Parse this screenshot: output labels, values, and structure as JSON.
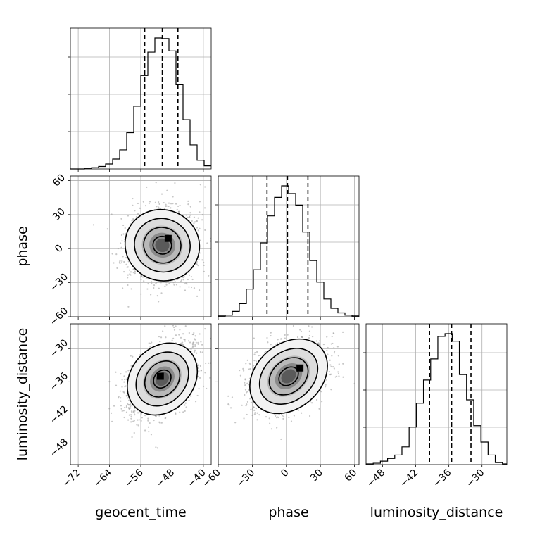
{
  "chart_data": {
    "type": "corner",
    "parameters": [
      "geocent_time",
      "phase",
      "luminosity_distance"
    ],
    "axis_labels": {
      "x": [
        "geocent_time",
        "phase",
        "luminosity_distance"
      ],
      "y": [
        "phase",
        "luminosity_distance"
      ]
    },
    "ranges": {
      "geocent_time": [
        -74,
        -38
      ],
      "phase": [
        -60,
        64
      ],
      "luminosity_distance": [
        -51,
        -25.5
      ]
    },
    "ticks": {
      "geocent_time": [
        -72,
        -64,
        -56,
        -48,
        -40
      ],
      "phase": [
        -60,
        -30,
        0,
        30,
        60
      ],
      "luminosity_distance": [
        -48,
        -42,
        -36,
        -30
      ]
    },
    "tick_labels": {
      "geocent_time": [
        "−72",
        "−64",
        "−56",
        "−48",
        "−40"
      ],
      "phase": [
        "−60",
        "−30",
        "0",
        "30",
        "60"
      ],
      "luminosity_distance": [
        "−48",
        "−42",
        "−36",
        "−30"
      ]
    },
    "quantiles": {
      "geocent_time": [
        -55,
        -50.5,
        -46.5
      ],
      "phase": [
        -17,
        1,
        19
      ],
      "luminosity_distance": [
        -39.5,
        -35.5,
        -32
      ]
    },
    "histograms": {
      "geocent_time": {
        "edges": [
          -74,
          -72.2,
          -70.4,
          -68.6,
          -66.8,
          -65,
          -63.2,
          -61.4,
          -59.6,
          -57.8,
          -56,
          -54.2,
          -52.4,
          -50.6,
          -48.8,
          -47,
          -45.2,
          -43.4,
          -41.6,
          -39.8,
          -38
        ],
        "counts": [
          0,
          0,
          1,
          2,
          4,
          8,
          16,
          31,
          59,
          102,
          152,
          190,
          213,
          212,
          192,
          137,
          80,
          39,
          14,
          5
        ]
      },
      "phase": {
        "edges": [
          -60,
          -53.8,
          -47.6,
          -41.4,
          -35.2,
          -29,
          -22.8,
          -16.6,
          -10.4,
          -4.2,
          2,
          8.2,
          14.4,
          20.6,
          26.8,
          33,
          39.2,
          45.4,
          51.6,
          57.8,
          64
        ],
        "counts": [
          1,
          2,
          7,
          17,
          36,
          61,
          96,
          131,
          155,
          170,
          160,
          145,
          110,
          73,
          45,
          23,
          11,
          5,
          2,
          1
        ]
      },
      "luminosity_distance": {
        "edges": [
          -51,
          -49.7,
          -48.4,
          -47.1,
          -45.8,
          -44.5,
          -43.2,
          -41.9,
          -40.6,
          -39.3,
          -38,
          -36.7,
          -35.4,
          -34.1,
          -32.8,
          -31.5,
          -30.2,
          -28.9,
          -27.6,
          -26.3,
          -25
        ],
        "counts": [
          1,
          2,
          5,
          9,
          14,
          26,
          55,
          90,
          124,
          155,
          188,
          192,
          181,
          132,
          95,
          57,
          33,
          14,
          3,
          1
        ]
      }
    },
    "joint_posteriors": [
      {
        "x": "geocent_time",
        "y": "phase",
        "center": [
          -50.5,
          3
        ],
        "sigma": [
          4.4,
          17
        ],
        "correlation": 0.1,
        "peak": [
          -49,
          9
        ]
      },
      {
        "x": "geocent_time",
        "y": "luminosity_distance",
        "center": [
          -50.5,
          -35.5
        ],
        "sigma": [
          4.4,
          3.3
        ],
        "correlation": 0.45,
        "peak": [
          -51,
          -35
        ]
      },
      {
        "x": "phase",
        "y": "luminosity_distance",
        "center": [
          2,
          -35
        ],
        "sigma": [
          17,
          3.3
        ],
        "correlation": 0.38,
        "peak": [
          12,
          -33.5
        ]
      }
    ],
    "contour_levels_sigma": [
      0.5,
      1,
      1.5,
      2
    ],
    "grid": true,
    "legend": "none",
    "colors": {
      "line": "#000000",
      "grid": "#b0b0b0",
      "points": "#999999",
      "background": "#ffffff"
    }
  }
}
